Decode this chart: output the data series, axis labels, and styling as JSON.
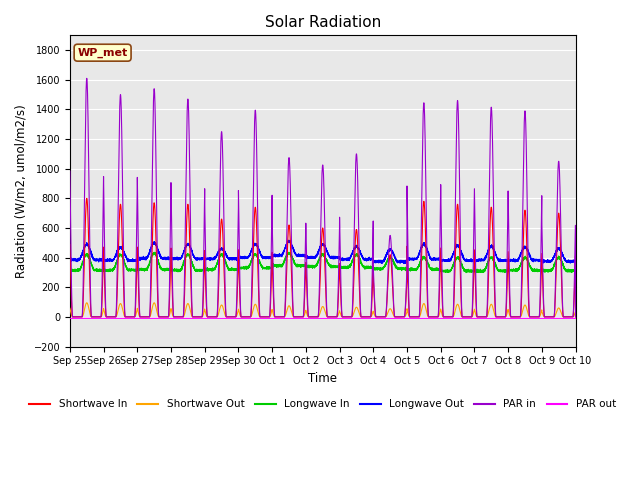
{
  "title": "Solar Radiation",
  "ylabel": "Radiation (W/m2, umol/m2/s)",
  "xlabel": "Time",
  "ylim": [
    -200,
    1900
  ],
  "yticks": [
    -200,
    0,
    200,
    400,
    600,
    800,
    1000,
    1200,
    1400,
    1600,
    1800
  ],
  "x_tick_labels": [
    "Sep 25",
    "Sep 26",
    "Sep 27",
    "Sep 28",
    "Sep 29",
    "Sep 30",
    "Oct 1",
    "Oct 2",
    "Oct 3",
    "Oct 4",
    "Oct 5",
    "Oct 6",
    "Oct 7",
    "Oct 8",
    "Oct 9",
    "Oct 10"
  ],
  "bg_color": "#e8e8e8",
  "plot_bg_color": "#e8e8e8",
  "annotation_text": "WP_met",
  "annotation_facecolor": "#ffffcc",
  "annotation_edgecolor": "#8B4513",
  "legend_entries": [
    {
      "label": "Shortwave In",
      "color": "#ff0000"
    },
    {
      "label": "Shortwave Out",
      "color": "#ffa500"
    },
    {
      "label": "Longwave In",
      "color": "#00cc00"
    },
    {
      "label": "Longwave Out",
      "color": "#0000ff"
    },
    {
      "label": "PAR in",
      "color": "#9900cc"
    },
    {
      "label": "PAR out",
      "color": "#ff00ff"
    }
  ],
  "num_days": 16,
  "peaks_sw_in": [
    800,
    760,
    770,
    760,
    660,
    740,
    620,
    600,
    590,
    420,
    780,
    760,
    740,
    720,
    700,
    530
  ],
  "peaks_sw_out": [
    95,
    90,
    95,
    90,
    80,
    85,
    75,
    70,
    65,
    55,
    90,
    85,
    85,
    80,
    60,
    55
  ],
  "peaks_lw_in": [
    420,
    420,
    430,
    420,
    420,
    420,
    430,
    420,
    420,
    400,
    400,
    400,
    400,
    400,
    400,
    380
  ],
  "base_lw_in": [
    315,
    315,
    320,
    315,
    320,
    330,
    345,
    340,
    335,
    325,
    320,
    310,
    310,
    315,
    312,
    308
  ],
  "peaks_lw_out": [
    490,
    470,
    500,
    490,
    460,
    490,
    510,
    490,
    475,
    455,
    490,
    480,
    475,
    470,
    460,
    440
  ],
  "base_lw_out": [
    385,
    382,
    395,
    392,
    392,
    400,
    415,
    402,
    390,
    372,
    390,
    382,
    382,
    382,
    375,
    375
  ],
  "peaks_par_in": [
    1610,
    1500,
    1540,
    1470,
    1250,
    1395,
    1075,
    1025,
    1100,
    550,
    1445,
    1460,
    1415,
    1390,
    1050,
    1050
  ],
  "par_out_level": -10,
  "figsize": [
    6.4,
    4.8
  ],
  "dpi": 100
}
